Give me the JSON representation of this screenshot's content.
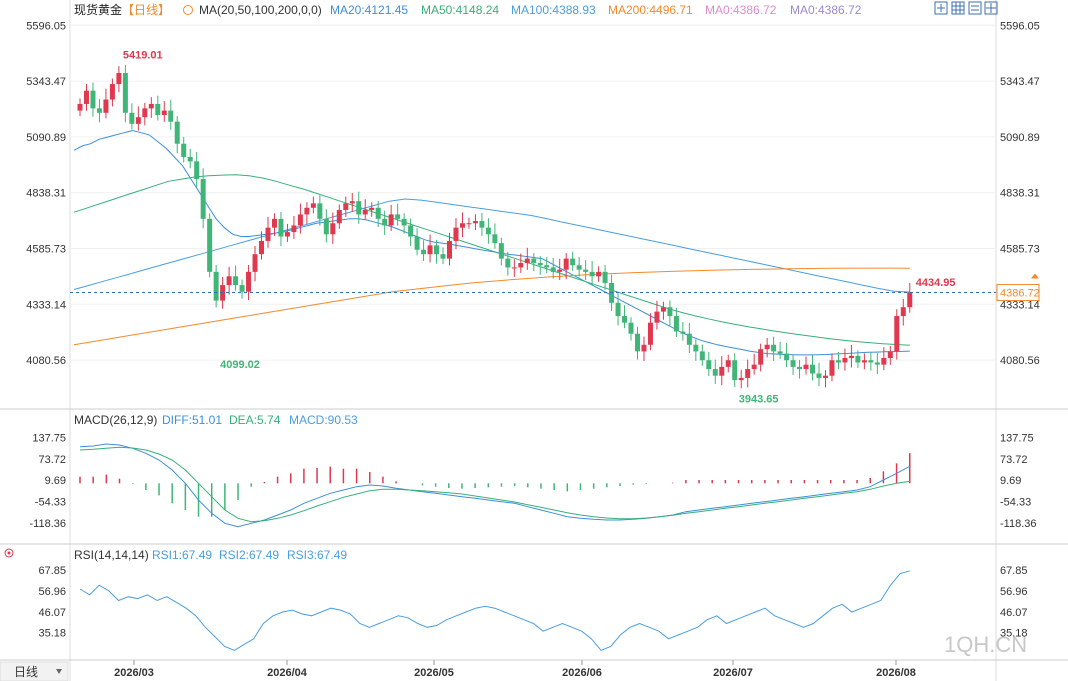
{
  "header": {
    "symbol": "现货黄金",
    "period": "【日线】",
    "ma_label": "MA(20,50,100,200,0,0)",
    "ma20": "MA20:4121.45",
    "ma50": "MA50:4148.24",
    "ma100": "MA100:4388.93",
    "ma200": "MA200:4496.71",
    "ma0a": "MA0:4386.72",
    "ma0b": "MA0:4386.72"
  },
  "macd_header": {
    "title": "MACD(26,12,9)",
    "diff": "DIFF:51.01",
    "dea": "DEA:5.74",
    "macd": "MACD:90.53"
  },
  "rsi_header": {
    "title": "RSI(14,14,14)",
    "rsi1": "RSI1:67.49",
    "rsi2": "RSI2:67.49",
    "rsi3": "RSI3:67.49"
  },
  "period_button": "日线",
  "watermark": "1QH.CN",
  "colors": {
    "up": "#e0384f",
    "down": "#3fb577",
    "ma20": "#3d8fd8",
    "ma50": "#36b07a",
    "ma100": "#4a9ee0",
    "ma200": "#f5892b",
    "ma0a": "#e08ad0",
    "ma0b": "#9a8ad8",
    "price_line": "#2f6fb0",
    "macd_dea": "#36b07a",
    "rsi": "#4a9ee0"
  },
  "chart_data": [
    {
      "type": "candlestick",
      "title": "现货黄金 日线",
      "y_ticks": [
        "5596.05",
        "5343.47",
        "5090.89",
        "4838.31",
        "4585.73",
        "4333.14",
        "4080.56"
      ],
      "y_range": [
        3900,
        5620
      ],
      "x_ticks": [
        "2026/03",
        "2026/04",
        "2026/05",
        "2026/06",
        "2026/07",
        "2026/08"
      ],
      "current_price": "4386.72",
      "annotations": {
        "high": "5419.01",
        "low1": "4099.02",
        "low2": "3943.65",
        "last_high": "4434.95"
      },
      "closes": [
        5240,
        5300,
        5220,
        5200,
        5260,
        5330,
        5380,
        5200,
        5150,
        5180,
        5220,
        5240,
        5190,
        5210,
        5160,
        5060,
        5000,
        4980,
        4900,
        4720,
        4480,
        4350,
        4420,
        4460,
        4420,
        4390,
        4480,
        4560,
        4620,
        4680,
        4720,
        4640,
        4660,
        4690,
        4740,
        4770,
        4790,
        4720,
        4650,
        4700,
        4760,
        4790,
        4800,
        4740,
        4760,
        4770,
        4720,
        4690,
        4740,
        4720,
        4690,
        4640,
        4580,
        4560,
        4600,
        4560,
        4540,
        4620,
        4680,
        4700,
        4700,
        4710,
        4680,
        4650,
        4610,
        4540,
        4500,
        4500,
        4520,
        4540,
        4520,
        4510,
        4500,
        4480,
        4490,
        4540,
        4510,
        4490,
        4480,
        4460,
        4480,
        4430,
        4340,
        4280,
        4250,
        4200,
        4120,
        4150,
        4250,
        4300,
        4320,
        4280,
        4210,
        4200,
        4150,
        4120,
        4080,
        4040,
        4010,
        4050,
        4080,
        3990,
        4000,
        4040,
        4060,
        4130,
        4150,
        4120,
        4110,
        4080,
        4050,
        4040,
        4060,
        4020,
        4000,
        4010,
        4080,
        4070,
        4090,
        4100,
        4070,
        4080,
        4070,
        4060,
        4090,
        4120,
        4280,
        4320,
        4386.72
      ],
      "ma20": [
        5030,
        5050,
        5060,
        5080,
        5090,
        5100,
        5110,
        5120,
        5110,
        5100,
        5070,
        5040,
        5000,
        4960,
        4900,
        4840,
        4780,
        4720,
        4680,
        4650,
        4640,
        4640,
        4645,
        4650,
        4655,
        4660,
        4670,
        4680,
        4690,
        4700,
        4705,
        4710,
        4715,
        4720,
        4720,
        4715,
        4705,
        4695,
        4685,
        4670,
        4655,
        4640,
        4625,
        4615,
        4610,
        4605,
        4598,
        4592,
        4585,
        4578,
        4572,
        4565,
        4560,
        4555,
        4550,
        4545,
        4540,
        4520,
        4500,
        4480,
        4460,
        4440,
        4420,
        4400,
        4380,
        4360,
        4340,
        4320,
        4300,
        4280,
        4260,
        4240,
        4220,
        4200,
        4185,
        4170,
        4160,
        4150,
        4142,
        4135,
        4128,
        4120,
        4115,
        4110,
        4108,
        4106,
        4105,
        4104,
        4104,
        4105,
        4106,
        4108,
        4110,
        4112,
        4114,
        4116,
        4117,
        4118,
        4119,
        4120,
        4121.45
      ],
      "ma50": [
        4750,
        4770,
        4790,
        4810,
        4830,
        4850,
        4870,
        4890,
        4900,
        4910,
        4915,
        4918,
        4920,
        4915,
        4905,
        4890,
        4872,
        4855,
        4835,
        4815,
        4795,
        4775,
        4755,
        4735,
        4715,
        4695,
        4675,
        4655,
        4635,
        4615,
        4595,
        4575,
        4555,
        4535,
        4515,
        4495,
        4475,
        4455,
        4435,
        4415,
        4395,
        4375,
        4355,
        4335,
        4315,
        4298,
        4282,
        4268,
        4255,
        4243,
        4232,
        4222,
        4212,
        4203,
        4194,
        4186,
        4178,
        4171,
        4165,
        4160,
        4155,
        4151,
        4148.24
      ],
      "ma100": [
        4400,
        4420,
        4440,
        4460,
        4480,
        4500,
        4520,
        4540,
        4560,
        4580,
        4600,
        4620,
        4640,
        4660,
        4680,
        4700,
        4720,
        4740,
        4760,
        4780,
        4800,
        4810,
        4805,
        4795,
        4785,
        4775,
        4765,
        4755,
        4745,
        4735,
        4720,
        4705,
        4690,
        4675,
        4660,
        4645,
        4630,
        4615,
        4600,
        4585,
        4570,
        4555,
        4540,
        4525,
        4510,
        4495,
        4480,
        4465,
        4450,
        4435,
        4420,
        4405,
        4392,
        4388.93
      ],
      "ma200": [
        4150,
        4180,
        4210,
        4240,
        4270,
        4300,
        4330,
        4360,
        4390,
        4410,
        4430,
        4445,
        4458,
        4468,
        4476,
        4482,
        4487,
        4491,
        4494,
        4496,
        4497,
        4496.71
      ],
      "annotations_style": "labels in red/green"
    },
    {
      "type": "macd",
      "y_ticks": [
        "137.75",
        "73.72",
        "9.69",
        "-54.33",
        "-118.36"
      ],
      "y_range": [
        -170,
        160
      ],
      "diff": [
        110,
        112,
        118,
        115,
        105,
        90,
        70,
        40,
        0,
        -50,
        -90,
        -120,
        -130,
        -120,
        -110,
        -95,
        -80,
        -60,
        -45,
        -30,
        -20,
        -10,
        -5,
        -8,
        -15,
        -20,
        -25,
        -30,
        -35,
        -40,
        -45,
        -50,
        -55,
        -60,
        -70,
        -80,
        -90,
        -100,
        -105,
        -108,
        -110,
        -110,
        -108,
        -105,
        -100,
        -95,
        -85,
        -80,
        -75,
        -70,
        -65,
        -60,
        -55,
        -50,
        -45,
        -40,
        -35,
        -30,
        -25,
        -20,
        -10,
        10,
        30,
        51.01
      ],
      "dea": [
        100,
        102,
        105,
        108,
        106,
        100,
        88,
        70,
        40,
        0,
        -40,
        -80,
        -105,
        -115,
        -112,
        -105,
        -95,
        -82,
        -68,
        -55,
        -42,
        -32,
        -22,
        -18,
        -18,
        -20,
        -22,
        -25,
        -28,
        -32,
        -38,
        -44,
        -50,
        -56,
        -64,
        -72,
        -80,
        -88,
        -95,
        -100,
        -104,
        -106,
        -106,
        -104,
        -100,
        -96,
        -90,
        -85,
        -80,
        -75,
        -70,
        -65,
        -60,
        -55,
        -50,
        -45,
        -40,
        -35,
        -30,
        -25,
        -18,
        -8,
        0,
        5.74
      ],
      "hist": [
        20,
        20,
        26,
        14,
        -2,
        -20,
        -36,
        -60,
        -80,
        -100,
        -100,
        -80,
        -50,
        -10,
        4,
        20,
        30,
        44,
        46,
        50,
        44,
        44,
        34,
        20,
        6,
        0,
        -6,
        -10,
        -14,
        -16,
        -14,
        -12,
        -10,
        -8,
        -12,
        -16,
        -20,
        -24,
        -20,
        -16,
        -12,
        -8,
        -4,
        -2,
        0,
        2,
        10,
        10,
        10,
        10,
        10,
        10,
        10,
        10,
        10,
        10,
        10,
        10,
        10,
        10,
        16,
        36,
        60,
        90.53
      ]
    },
    {
      "type": "line",
      "name": "RSI",
      "y_ticks": [
        "67.85",
        "56.96",
        "46.07",
        "35.18"
      ],
      "y_range": [
        22,
        70
      ],
      "values": [
        58,
        55,
        60,
        57,
        52,
        54,
        53,
        55,
        52,
        54,
        51,
        48,
        44,
        38,
        33,
        28,
        26,
        29,
        32,
        40,
        44,
        46,
        47,
        45,
        44,
        46,
        48,
        47,
        45,
        40,
        38,
        40,
        42,
        44,
        43,
        40,
        38,
        39,
        42,
        44,
        46,
        48,
        49,
        48,
        46,
        44,
        42,
        40,
        36,
        38,
        40,
        38,
        36,
        32,
        26,
        28,
        34,
        38,
        40,
        38,
        36,
        32,
        34,
        36,
        38,
        42,
        44,
        40,
        42,
        44,
        46,
        48,
        44,
        42,
        40,
        38,
        40,
        44,
        48,
        50,
        46,
        48,
        50,
        52,
        60,
        66,
        67.49
      ]
    }
  ]
}
